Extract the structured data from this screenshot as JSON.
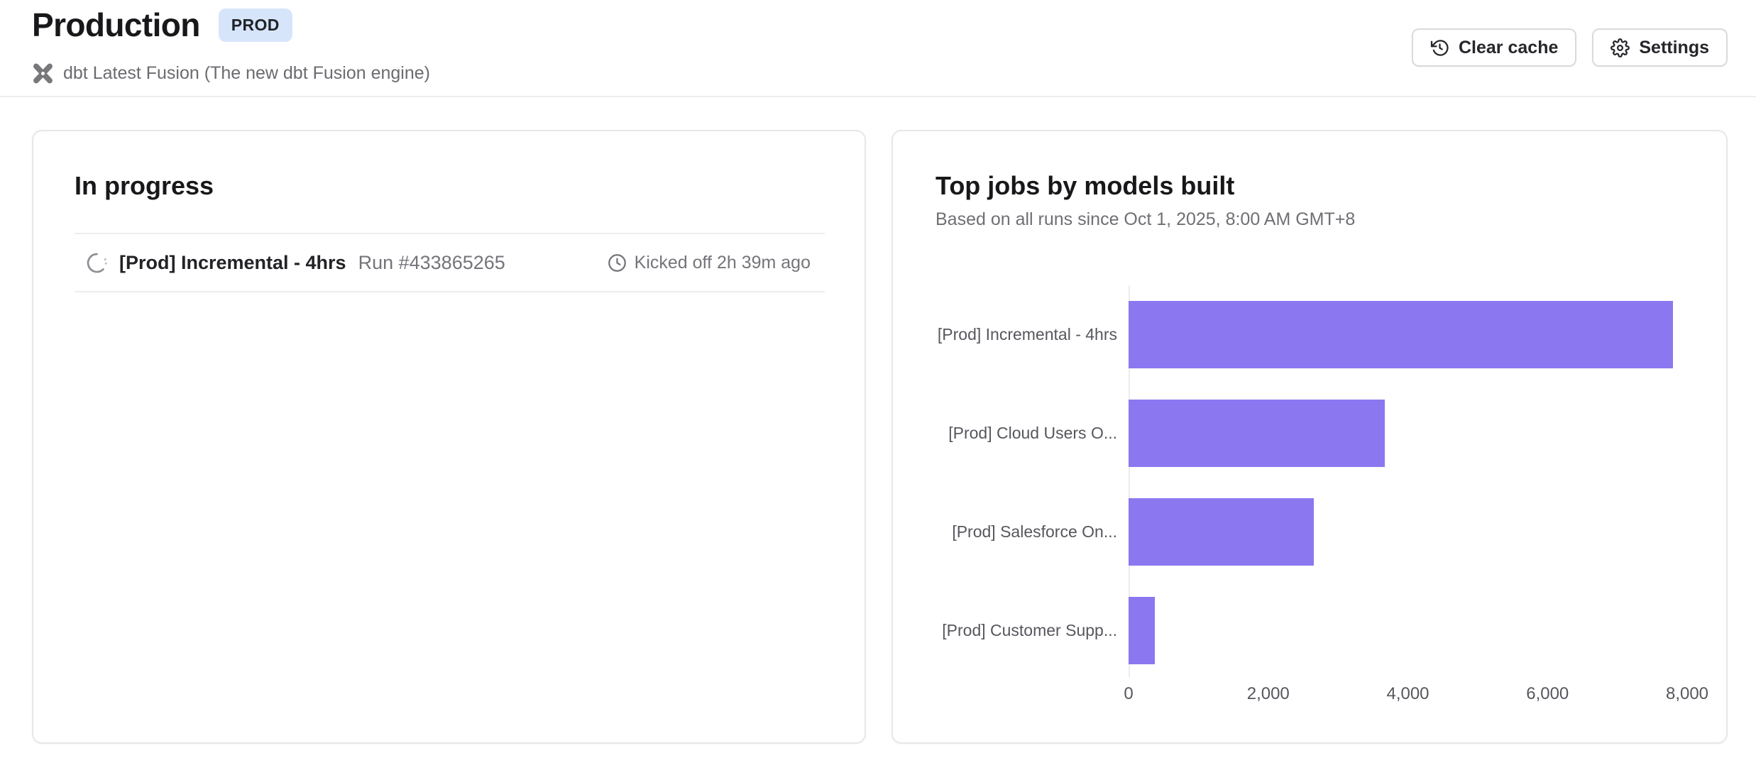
{
  "header": {
    "title": "Production",
    "badge": "PROD",
    "subtitle": "dbt Latest Fusion (The new dbt Fusion engine)",
    "buttons": {
      "clear_cache": "Clear cache",
      "settings": "Settings"
    }
  },
  "in_progress": {
    "heading": "In progress",
    "run": {
      "job_name": "[Prod] Incremental - 4hrs",
      "run_label": "Run #433865265",
      "kicked_off": "Kicked off 2h 39m ago"
    }
  },
  "chart_data": {
    "type": "bar",
    "orientation": "horizontal",
    "title": "Top jobs by models built",
    "subtitle": "Based on all runs since Oct 1, 2025, 8:00 AM GMT+8",
    "categories": [
      "[Prod] Incremental - 4hrs",
      "[Prod] Cloud Users O...",
      "[Prod] Salesforce On...",
      "[Prod] Customer Supp..."
    ],
    "values": [
      7800,
      3670,
      2650,
      380
    ],
    "xlabel": "",
    "ylabel": "",
    "xlim": [
      0,
      8000
    ],
    "xticks": [
      0,
      2000,
      4000,
      6000,
      8000
    ],
    "xtick_labels": [
      "0",
      "2,000",
      "4,000",
      "6,000",
      "8,000"
    ],
    "bar_color": "#8b77f0",
    "grid": false,
    "legend": false
  },
  "icons": {
    "engine": "dbt-logo-icon",
    "clear_cache": "history-icon",
    "settings": "gear-icon",
    "run_status": "spinner-icon",
    "kicked_off": "clock-icon"
  },
  "colors": {
    "bar": "#8b77f0",
    "badge_bg": "#d7e5fb",
    "divider": "#ededf0",
    "muted_text": "#74747a"
  }
}
